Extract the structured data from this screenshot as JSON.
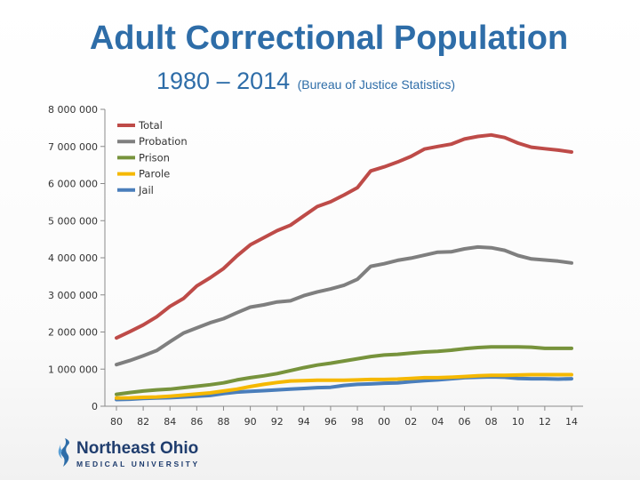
{
  "chart_data": {
    "type": "line",
    "title": "Adult Correctional Population",
    "subtitle": "1980 – 2014",
    "source": "(Bureau of Justice Statistics)",
    "xlabel": "",
    "ylabel": "",
    "xlim": [
      1980,
      2014
    ],
    "ylim": [
      0,
      8000000
    ],
    "y_ticks": [
      0,
      1000000,
      2000000,
      3000000,
      4000000,
      5000000,
      6000000,
      7000000,
      8000000
    ],
    "y_tick_labels": [
      "0",
      "1 000 000",
      "2 000 000",
      "3 000 000",
      "4 000 000",
      "5 000 000",
      "6 000 000",
      "7 000 000",
      "8 000 000"
    ],
    "x_ticks": [
      1980,
      1982,
      1984,
      1986,
      1988,
      1990,
      1992,
      1994,
      1996,
      1998,
      2000,
      2002,
      2004,
      2006,
      2008,
      2010,
      2012,
      2014
    ],
    "x_tick_labels": [
      "80",
      "82",
      "84",
      "86",
      "88",
      "90",
      "92",
      "94",
      "96",
      "98",
      "00",
      "02",
      "04",
      "06",
      "08",
      "10",
      "12",
      "14"
    ],
    "legend_position": "top-left",
    "grid": false,
    "x": [
      1980,
      1981,
      1982,
      1983,
      1984,
      1985,
      1986,
      1987,
      1988,
      1989,
      1990,
      1991,
      1992,
      1993,
      1994,
      1995,
      1996,
      1997,
      1998,
      1999,
      2000,
      2001,
      2002,
      2003,
      2004,
      2005,
      2006,
      2007,
      2008,
      2009,
      2010,
      2011,
      2012,
      2013,
      2014
    ],
    "series": [
      {
        "name": "Total",
        "color": "#be4b48",
        "values": [
          1840000,
          2010000,
          2190000,
          2410000,
          2690000,
          2900000,
          3240000,
          3460000,
          3710000,
          4050000,
          4350000,
          4540000,
          4730000,
          4880000,
          5130000,
          5380000,
          5510000,
          5690000,
          5890000,
          6340000,
          6450000,
          6580000,
          6730000,
          6930000,
          7000000,
          7060000,
          7200000,
          7270000,
          7310000,
          7240000,
          7090000,
          6980000,
          6940000,
          6900000,
          6850000
        ]
      },
      {
        "name": "Probation",
        "color": "#7f7f7f",
        "values": [
          1120000,
          1230000,
          1360000,
          1500000,
          1740000,
          1970000,
          2110000,
          2250000,
          2360000,
          2520000,
          2670000,
          2730000,
          2810000,
          2840000,
          2980000,
          3080000,
          3160000,
          3260000,
          3420000,
          3770000,
          3840000,
          3930000,
          3990000,
          4070000,
          4150000,
          4160000,
          4240000,
          4290000,
          4270000,
          4200000,
          4060000,
          3970000,
          3940000,
          3910000,
          3860000
        ]
      },
      {
        "name": "Prison",
        "color": "#77933c",
        "values": [
          320000,
          370000,
          410000,
          440000,
          460000,
          500000,
          540000,
          580000,
          630000,
          710000,
          770000,
          820000,
          880000,
          960000,
          1040000,
          1110000,
          1160000,
          1220000,
          1280000,
          1340000,
          1380000,
          1400000,
          1430000,
          1460000,
          1480000,
          1510000,
          1550000,
          1580000,
          1600000,
          1600000,
          1600000,
          1590000,
          1560000,
          1560000,
          1560000
        ]
      },
      {
        "name": "Parole",
        "color": "#f5b800",
        "values": [
          220000,
          225000,
          240000,
          250000,
          270000,
          300000,
          330000,
          360000,
          410000,
          460000,
          530000,
          590000,
          640000,
          680000,
          690000,
          700000,
          700000,
          700000,
          710000,
          720000,
          720000,
          730000,
          750000,
          770000,
          770000,
          780000,
          800000,
          820000,
          830000,
          830000,
          840000,
          850000,
          850000,
          850000,
          850000
        ]
      },
      {
        "name": "Jail",
        "color": "#4a7ebb",
        "values": [
          180000,
          190000,
          210000,
          220000,
          230000,
          250000,
          270000,
          290000,
          340000,
          380000,
          400000,
          420000,
          440000,
          460000,
          480000,
          500000,
          510000,
          560000,
          590000,
          600000,
          620000,
          630000,
          660000,
          690000,
          710000,
          740000,
          770000,
          780000,
          790000,
          780000,
          750000,
          740000,
          740000,
          730000,
          740000
        ]
      }
    ]
  },
  "logo": {
    "name": "Northeast Ohio",
    "subtitle": "MEDICAL UNIVERSITY"
  }
}
